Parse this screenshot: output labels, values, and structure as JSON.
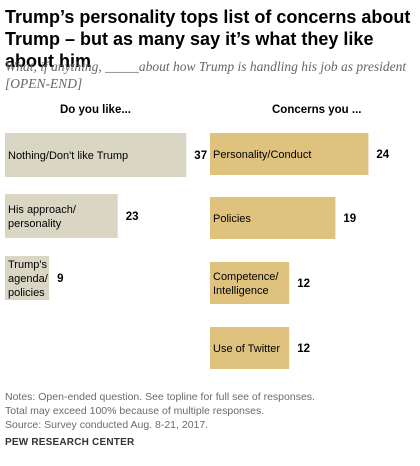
{
  "title": "Trump’s personality tops list of concerns about Trump – but as many say it’s what they like about him",
  "subtitle_line1": "What, if anything, _____about how Trump is handling his job as president",
  "subtitle_line2": "[OPEN-END]",
  "colors": {
    "like": "#d9d6c4",
    "concerns": "#dfc27d"
  },
  "chart_data": [
    {
      "type": "bar",
      "orientation": "horizontal",
      "title": "Do you like...",
      "categories": [
        [
          "Nothing/Don't like Trump"
        ],
        [
          "His approach/",
          "personality"
        ],
        [
          "Trump's",
          "agenda/",
          "policies"
        ]
      ],
      "values": [
        37,
        23,
        9
      ]
    },
    {
      "type": "bar",
      "orientation": "horizontal",
      "title": "Concerns you ...",
      "categories": [
        [
          "Personality/Conduct"
        ],
        [
          "Policies"
        ],
        [
          "Competence/",
          "Intelligence"
        ],
        [
          "Use of Twitter"
        ]
      ],
      "values": [
        24,
        19,
        12,
        12
      ]
    }
  ],
  "notes": [
    "Notes: Open-ended question. See topline for full see of responses.",
    "Total may exceed 100% because of multiple responses.",
    "Source: Survey conducted Aug. 8-21, 2017."
  ],
  "source_org": "PEW RESEARCH CENTER"
}
